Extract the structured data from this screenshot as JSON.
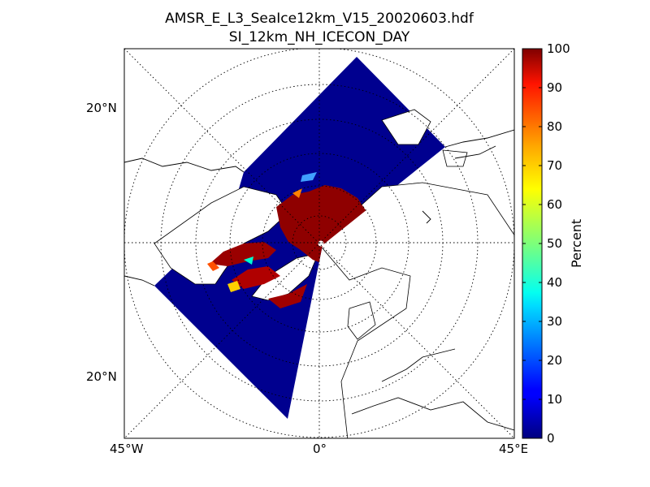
{
  "title": {
    "line1": "AMSR_E_L3_SeaIce12km_V15_20020603.hdf",
    "line2": "SI_12km_NH_ICECON_DAY"
  },
  "map": {
    "projection": "north-polar-stereographic",
    "graticule_style": "dotted",
    "lat_labels": [
      "20°N",
      "20°N"
    ],
    "lon_labels": [
      "45°W",
      "0°",
      "45°E"
    ],
    "ocean_color": "#00008f",
    "ice_color": "#8f0000",
    "land_color": "#ffffff",
    "coastline_color": "#000000"
  },
  "colorbar": {
    "label": "Percent",
    "min": 0,
    "max": 100,
    "ticks": [
      "100",
      "90",
      "80",
      "70",
      "60",
      "50",
      "40",
      "30",
      "20",
      "10",
      "0"
    ],
    "colormap": "jet"
  }
}
